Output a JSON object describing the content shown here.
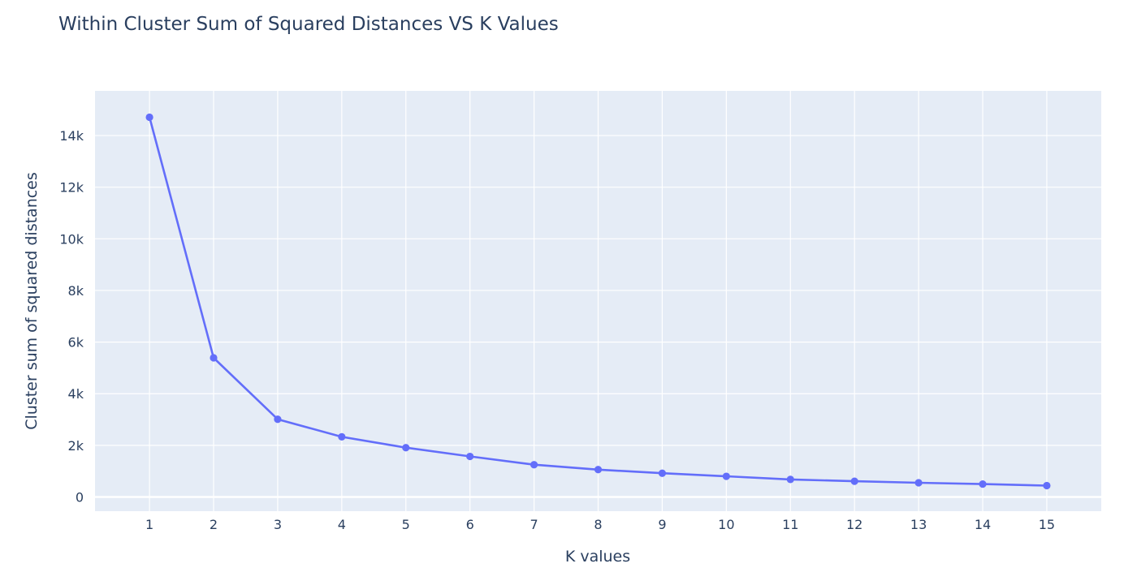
{
  "chart_data": {
    "type": "line",
    "title": "Within Cluster Sum of Squared Distances VS K Values",
    "xlabel": "K values",
    "ylabel": "Cluster sum of squared distances",
    "x": [
      1,
      2,
      3,
      4,
      5,
      6,
      7,
      8,
      9,
      10,
      11,
      12,
      13,
      14,
      15
    ],
    "series": [
      {
        "values": [
          14710,
          5390,
          3010,
          2330,
          1910,
          1570,
          1250,
          1060,
          920,
          800,
          680,
          610,
          550,
          500,
          440
        ],
        "color": "#636efa"
      }
    ],
    "xticks": [
      "1",
      "2",
      "3",
      "4",
      "5",
      "6",
      "7",
      "8",
      "9",
      "10",
      "11",
      "12",
      "13",
      "14",
      "15"
    ],
    "yticks": [
      {
        "value": 0,
        "label": "0"
      },
      {
        "value": 2000,
        "label": "2k"
      },
      {
        "value": 4000,
        "label": "4k"
      },
      {
        "value": 6000,
        "label": "6k"
      },
      {
        "value": 8000,
        "label": "8k"
      },
      {
        "value": 10000,
        "label": "10k"
      },
      {
        "value": 12000,
        "label": "12k"
      },
      {
        "value": 14000,
        "label": "14k"
      }
    ],
    "xlim": [
      0.15,
      15.85
    ],
    "ylim": [
      -550,
      15730
    ],
    "grid": true,
    "colors": {
      "plot_background": "#e5ecf6",
      "grid": "#ffffff",
      "text": "#2a3f5f"
    }
  }
}
